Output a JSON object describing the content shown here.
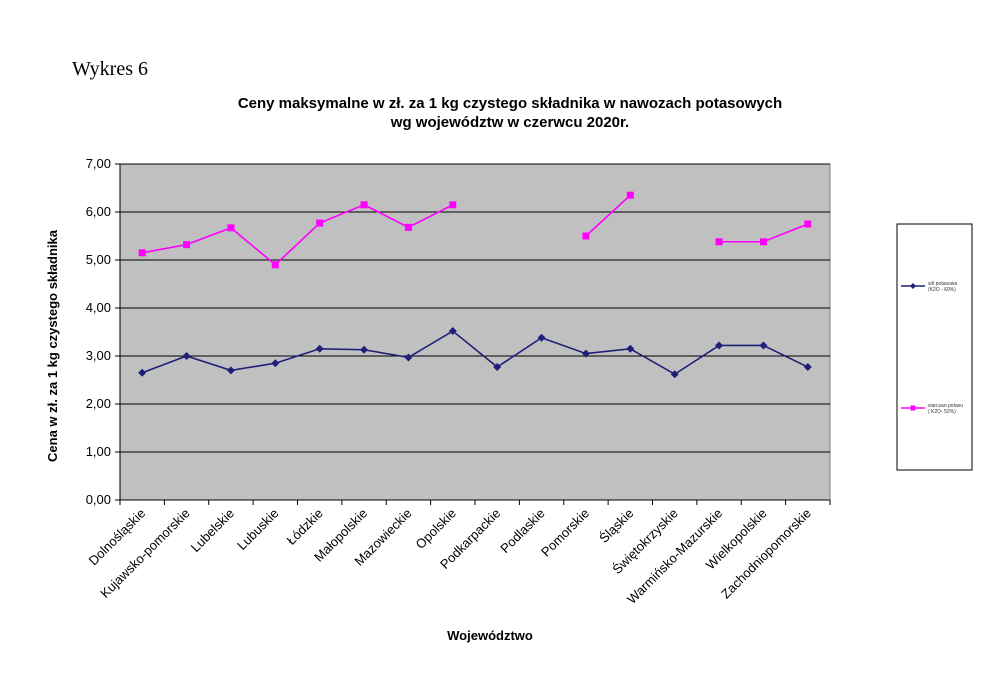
{
  "page_label": "Wykres 6",
  "chart_data": {
    "type": "line",
    "title_lines": [
      "Ceny maksymalne  w zł. za 1 kg czystego składnika w nawozach potasowych",
      "wg województw w czerwcu 2020r."
    ],
    "xlabel": "Województwo",
    "ylabel": "Cena w zł. za 1 kg czystego składnika",
    "ylim": [
      0,
      7
    ],
    "yticks": [
      "0,00",
      "1,00",
      "2,00",
      "3,00",
      "4,00",
      "5,00",
      "6,00",
      "7,00"
    ],
    "grid": "horizontal",
    "legend_placement": "right",
    "plot_background": "#c0c0c0",
    "categories": [
      "Dolnośląskie",
      "Kujawsko-pomorskie",
      "Lubelskie",
      "Lubuskie",
      "Łódzkie",
      "Małopolskie",
      "Mazowieckie",
      "Opolskie",
      "Podkarpackie",
      "Podlaskie",
      "Pomorskie",
      "Śląskie",
      "Świętokrzyskie",
      "Warmińsko-Mazurskie",
      "Wielkopolskie",
      "Zachodniopomorskie"
    ],
    "series": [
      {
        "name": "sól potasowa (K2O - 60%)",
        "color": "#1f1f7a",
        "marker": "diamond",
        "values": [
          2.65,
          3.0,
          2.7,
          2.85,
          3.15,
          3.13,
          2.97,
          3.52,
          2.77,
          3.38,
          3.05,
          3.15,
          2.62,
          3.22,
          3.22,
          2.77
        ]
      },
      {
        "name": "siarczan potasu ( K2O- 52%)",
        "color": "#ff00ff",
        "marker": "square",
        "values": [
          5.15,
          5.32,
          5.67,
          4.9,
          5.77,
          6.15,
          5.68,
          6.15,
          null,
          null,
          5.5,
          6.35,
          null,
          5.38,
          5.38,
          5.75
        ]
      }
    ]
  }
}
